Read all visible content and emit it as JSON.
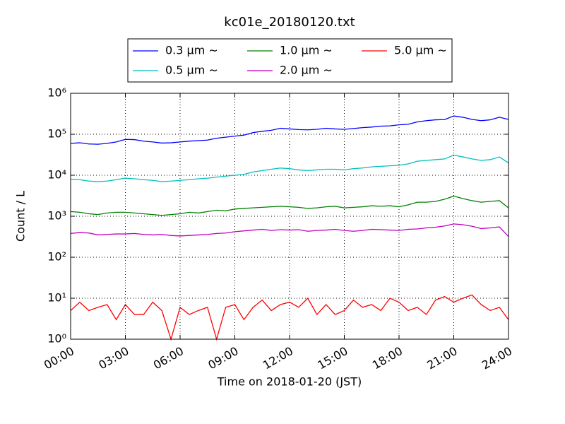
{
  "chart_data": {
    "type": "line",
    "title": "kc01e_20180120.txt",
    "xlabel": "Time on 2018-01-20 (JST)",
    "ylabel": "Count / L",
    "x": [
      0,
      0.5,
      1,
      1.5,
      2,
      2.5,
      3,
      3.5,
      4,
      4.5,
      5,
      5.5,
      6,
      6.5,
      7,
      7.5,
      8,
      8.5,
      9,
      9.5,
      10,
      10.5,
      11,
      11.5,
      12,
      12.5,
      13,
      13.5,
      14,
      14.5,
      15,
      15.5,
      16,
      16.5,
      17,
      17.5,
      18,
      18.5,
      19,
      19.5,
      20,
      20.5,
      21,
      21.5,
      22,
      22.5,
      23,
      23.5,
      24
    ],
    "series": [
      {
        "name": "0.3 μm ∼",
        "color": "#0000ff",
        "values": [
          60000,
          62000,
          58000,
          57000,
          60000,
          65000,
          75000,
          74000,
          68000,
          65000,
          61000,
          62000,
          65000,
          68000,
          70000,
          72000,
          80000,
          85000,
          90000,
          95000,
          110000,
          118000,
          125000,
          140000,
          135000,
          130000,
          128000,
          132000,
          140000,
          135000,
          132000,
          138000,
          145000,
          150000,
          158000,
          160000,
          170000,
          175000,
          200000,
          215000,
          225000,
          228000,
          280000,
          260000,
          230000,
          215000,
          225000,
          260000,
          230000
        ]
      },
      {
        "name": "0.5 μm ∼",
        "color": "#00bfbf",
        "values": [
          8000,
          7800,
          7200,
          7000,
          7200,
          7800,
          8500,
          8200,
          7800,
          7500,
          7000,
          7200,
          7500,
          7800,
          8200,
          8500,
          9000,
          9500,
          10000,
          10500,
          12000,
          13000,
          14000,
          15000,
          14500,
          13500,
          13000,
          13500,
          14000,
          14000,
          13500,
          14500,
          15000,
          16000,
          16500,
          17000,
          17500,
          19000,
          22000,
          23000,
          24000,
          25000,
          31000,
          28000,
          25000,
          23000,
          24000,
          28000,
          20000
        ]
      },
      {
        "name": "1.0 μm ∼",
        "color": "#008000",
        "values": [
          1300,
          1250,
          1150,
          1100,
          1200,
          1250,
          1250,
          1200,
          1150,
          1100,
          1050,
          1100,
          1150,
          1250,
          1200,
          1300,
          1400,
          1350,
          1500,
          1550,
          1600,
          1650,
          1700,
          1750,
          1700,
          1650,
          1550,
          1600,
          1700,
          1750,
          1600,
          1650,
          1700,
          1800,
          1750,
          1800,
          1700,
          1900,
          2200,
          2200,
          2300,
          2600,
          3100,
          2700,
          2400,
          2200,
          2300,
          2400,
          1600
        ]
      },
      {
        "name": "2.0 μm ∼",
        "color": "#bf00bf",
        "values": [
          380,
          400,
          390,
          350,
          360,
          370,
          370,
          380,
          360,
          350,
          360,
          340,
          330,
          340,
          350,
          360,
          380,
          390,
          420,
          440,
          460,
          480,
          450,
          470,
          460,
          470,
          430,
          450,
          460,
          480,
          450,
          430,
          450,
          480,
          470,
          460,
          450,
          480,
          490,
          520,
          540,
          580,
          650,
          620,
          570,
          500,
          520,
          550,
          320
        ]
      },
      {
        "name": "5.0 μm ∼",
        "color": "#ff0000",
        "values": [
          5,
          8,
          5,
          6,
          7,
          3,
          7,
          4,
          4,
          8,
          5,
          1,
          6,
          4,
          5,
          6,
          1,
          6,
          7,
          3,
          6,
          9,
          5,
          7,
          8,
          6,
          10,
          4,
          7,
          4,
          5,
          9,
          6,
          7,
          5,
          10,
          8,
          5,
          6,
          4,
          9,
          11,
          8,
          10,
          12,
          7,
          5,
          6,
          3
        ]
      }
    ],
    "xlim": [
      0,
      24
    ],
    "xticks": [
      {
        "value": 0,
        "label": "00:00"
      },
      {
        "value": 3,
        "label": "03:00"
      },
      {
        "value": 6,
        "label": "06:00"
      },
      {
        "value": 9,
        "label": "09:00"
      },
      {
        "value": 12,
        "label": "12:00"
      },
      {
        "value": 15,
        "label": "15:00"
      },
      {
        "value": 18,
        "label": "18:00"
      },
      {
        "value": 21,
        "label": "21:00"
      },
      {
        "value": 24,
        "label": "24:00"
      }
    ],
    "ylim": [
      1,
      1000000
    ],
    "yscale": "log",
    "yticks": [
      {
        "value": 1,
        "label": "10⁰"
      },
      {
        "value": 10,
        "label": "10¹"
      },
      {
        "value": 100,
        "label": "10²"
      },
      {
        "value": 1000,
        "label": "10³"
      },
      {
        "value": 10000,
        "label": "10⁴"
      },
      {
        "value": 100000,
        "label": "10⁵"
      },
      {
        "value": 1000000,
        "label": "10⁶"
      }
    ],
    "grid": true,
    "legend": "top"
  }
}
